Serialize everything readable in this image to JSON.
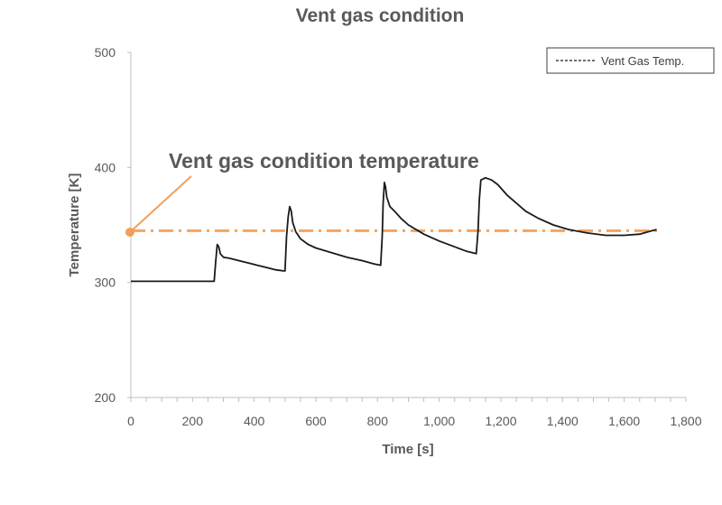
{
  "chart_data": {
    "type": "line",
    "title": "Vent gas condition",
    "xlabel": "Time [s]",
    "ylabel": "Temperature [K]",
    "xlim": [
      0,
      1800
    ],
    "ylim": [
      200,
      500
    ],
    "x_ticks": [
      0,
      200,
      400,
      600,
      800,
      1000,
      1200,
      1400,
      1600,
      1800
    ],
    "x_tick_labels": [
      "0",
      "200",
      "400",
      "600",
      "800",
      "1,000",
      "1,200",
      "1,400",
      "1,600",
      "1,800"
    ],
    "y_ticks": [
      200,
      300,
      400,
      500
    ],
    "y_tick_labels": [
      "200",
      "300",
      "400",
      "500"
    ],
    "grid": false,
    "legend_position": "top-right",
    "series": [
      {
        "name": "Vent Gas Temp.",
        "color": "#1a1a1a",
        "line_style": "dashed",
        "points": [
          [
            0,
            301
          ],
          [
            50,
            301
          ],
          [
            100,
            301
          ],
          [
            150,
            301
          ],
          [
            200,
            301
          ],
          [
            260,
            301
          ],
          [
            270,
            301
          ],
          [
            275,
            318
          ],
          [
            280,
            333
          ],
          [
            285,
            331
          ],
          [
            290,
            325
          ],
          [
            300,
            322
          ],
          [
            320,
            321
          ],
          [
            350,
            319
          ],
          [
            380,
            317
          ],
          [
            410,
            315
          ],
          [
            440,
            313
          ],
          [
            470,
            311
          ],
          [
            495,
            310
          ],
          [
            500,
            310
          ],
          [
            505,
            340
          ],
          [
            510,
            357
          ],
          [
            515,
            366
          ],
          [
            520,
            362
          ],
          [
            525,
            352
          ],
          [
            535,
            344
          ],
          [
            550,
            338
          ],
          [
            575,
            333
          ],
          [
            600,
            330
          ],
          [
            650,
            326
          ],
          [
            700,
            322
          ],
          [
            750,
            319
          ],
          [
            790,
            316
          ],
          [
            810,
            315
          ],
          [
            815,
            340
          ],
          [
            818,
            368
          ],
          [
            822,
            387
          ],
          [
            826,
            383
          ],
          [
            830,
            374
          ],
          [
            840,
            366
          ],
          [
            855,
            362
          ],
          [
            875,
            356
          ],
          [
            900,
            350
          ],
          [
            950,
            342
          ],
          [
            1000,
            336
          ],
          [
            1050,
            331
          ],
          [
            1090,
            327
          ],
          [
            1120,
            325
          ],
          [
            1126,
            345
          ],
          [
            1130,
            372
          ],
          [
            1135,
            389
          ],
          [
            1150,
            391
          ],
          [
            1170,
            389
          ],
          [
            1190,
            385
          ],
          [
            1220,
            376
          ],
          [
            1250,
            369
          ],
          [
            1280,
            362
          ],
          [
            1320,
            356
          ],
          [
            1370,
            350
          ],
          [
            1420,
            346
          ],
          [
            1480,
            343
          ],
          [
            1540,
            341
          ],
          [
            1600,
            341
          ],
          [
            1650,
            342
          ],
          [
            1690,
            345
          ],
          [
            1705,
            346
          ]
        ]
      }
    ],
    "reference_line": {
      "y": 345,
      "color": "#f4a460",
      "style": "dash-dot"
    },
    "annotation": {
      "text": "Vent gas condition temperature",
      "color": "#f0a05a"
    }
  }
}
